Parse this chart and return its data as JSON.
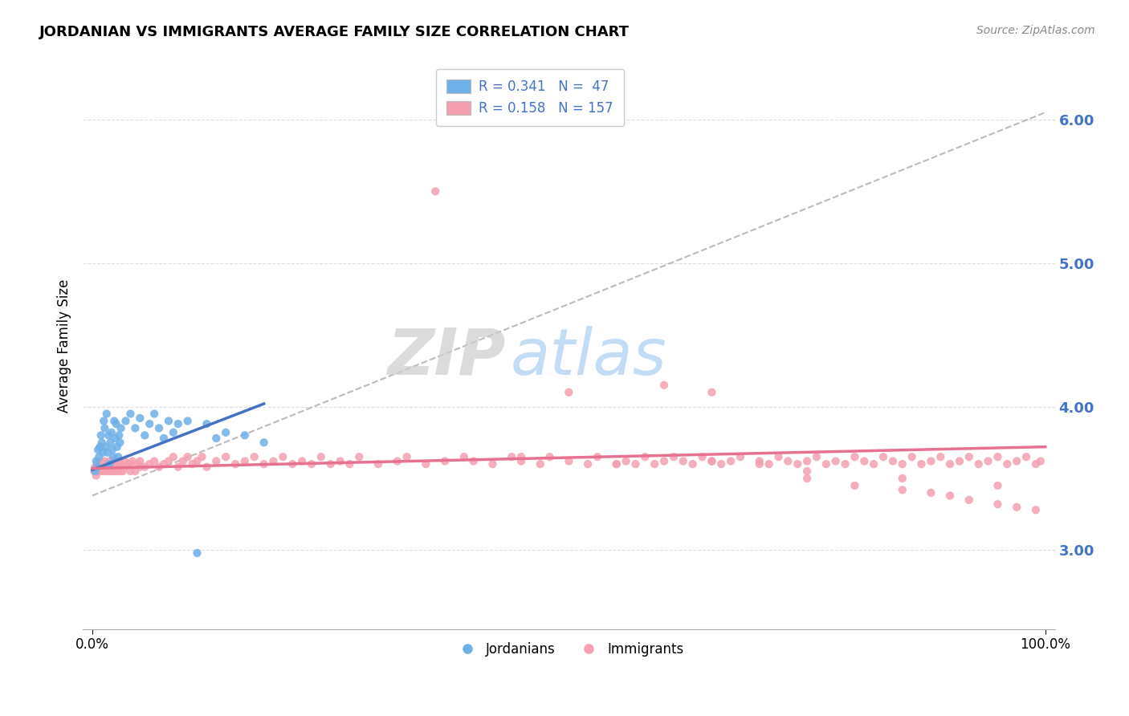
{
  "title": "JORDANIAN VS IMMIGRANTS AVERAGE FAMILY SIZE CORRELATION CHART",
  "source_text": "Source: ZipAtlas.com",
  "ylabel": "Average Family Size",
  "xlim": [
    -1,
    101
  ],
  "ylim": [
    2.45,
    6.4
  ],
  "yticks": [
    3.0,
    4.0,
    5.0,
    6.0
  ],
  "xtick_labels": [
    "0.0%",
    "100.0%"
  ],
  "ytick_color": "#4472C4",
  "legend_r1": "R = 0.341",
  "legend_n1": "N =  47",
  "legend_r2": "R = 0.158",
  "legend_n2": "N = 157",
  "color_jordanian": "#6EB0E8",
  "color_immigrant": "#F4A0B0",
  "color_blue_line": "#4472C4",
  "color_pink_line": "#E87090",
  "color_dashed": "#AAAAAA",
  "background_color": "#FFFFFF",
  "grid_color": "#DDDDDD",
  "title_fontsize": 13,
  "watermark_text1": "ZIP",
  "watermark_text2": "atlas",
  "legend_label1": "Jordanians",
  "legend_label2": "Immigrants",
  "jord_x": [
    0.3,
    0.4,
    0.5,
    0.6,
    0.7,
    0.8,
    0.9,
    1.0,
    1.1,
    1.2,
    1.3,
    1.4,
    1.5,
    1.6,
    1.7,
    1.8,
    1.9,
    2.0,
    2.1,
    2.2,
    2.3,
    2.4,
    2.5,
    2.6,
    2.7,
    2.8,
    2.9,
    3.0,
    3.5,
    4.0,
    4.5,
    5.0,
    5.5,
    6.0,
    6.5,
    7.0,
    7.5,
    8.0,
    8.5,
    9.0,
    10.0,
    11.0,
    12.0,
    13.0,
    14.0,
    16.0,
    18.0
  ],
  "jord_y": [
    3.55,
    3.62,
    3.58,
    3.7,
    3.65,
    3.72,
    3.8,
    3.75,
    3.68,
    3.9,
    3.85,
    3.72,
    3.95,
    3.68,
    3.8,
    3.6,
    3.75,
    3.82,
    3.7,
    3.65,
    3.9,
    3.78,
    3.88,
    3.72,
    3.65,
    3.8,
    3.75,
    3.85,
    3.9,
    3.95,
    3.85,
    3.92,
    3.8,
    3.88,
    3.95,
    3.85,
    3.78,
    3.9,
    3.82,
    3.88,
    3.9,
    2.98,
    3.88,
    3.78,
    3.82,
    3.8,
    3.75
  ],
  "imm_x": [
    0.2,
    0.3,
    0.4,
    0.5,
    0.6,
    0.7,
    0.8,
    0.9,
    1.0,
    1.1,
    1.2,
    1.3,
    1.4,
    1.5,
    1.6,
    1.7,
    1.8,
    1.9,
    2.0,
    2.1,
    2.2,
    2.3,
    2.4,
    2.5,
    2.6,
    2.7,
    2.8,
    2.9,
    3.0,
    3.2,
    3.4,
    3.6,
    3.8,
    4.0,
    4.2,
    4.5,
    4.8,
    5.0,
    5.5,
    6.0,
    6.5,
    7.0,
    7.5,
    8.0,
    8.5,
    9.0,
    9.5,
    10.0,
    10.5,
    11.0,
    11.5,
    12.0,
    13.0,
    14.0,
    15.0,
    16.0,
    17.0,
    18.0,
    19.0,
    20.0,
    21.0,
    22.0,
    23.0,
    24.0,
    25.0,
    26.0,
    27.0,
    28.0,
    30.0,
    32.0,
    33.0,
    35.0,
    37.0,
    39.0,
    40.0,
    42.0,
    44.0,
    45.0,
    47.0,
    48.0,
    50.0,
    52.0,
    53.0,
    55.0,
    56.0,
    57.0,
    58.0,
    59.0,
    60.0,
    61.0,
    62.0,
    63.0,
    64.0,
    65.0,
    66.0,
    67.0,
    68.0,
    70.0,
    71.0,
    72.0,
    73.0,
    74.0,
    75.0,
    76.0,
    77.0,
    78.0,
    79.0,
    80.0,
    81.0,
    82.0,
    83.0,
    84.0,
    85.0,
    86.0,
    87.0,
    88.0,
    89.0,
    90.0,
    91.0,
    92.0,
    93.0,
    94.0,
    95.0,
    96.0,
    97.0,
    98.0,
    99.0,
    99.5,
    36.0,
    50.0,
    60.0,
    65.0,
    70.0,
    75.0,
    80.0,
    85.0,
    88.0,
    90.0,
    92.0,
    95.0,
    97.0,
    99.0,
    45.0,
    55.0,
    65.0,
    75.0,
    85.0,
    95.0,
    0.5,
    1.0,
    1.5,
    2.0,
    2.5,
    3.0,
    4.0,
    5.0
  ],
  "imm_y": [
    3.55,
    3.58,
    3.52,
    3.6,
    3.55,
    3.58,
    3.62,
    3.55,
    3.6,
    3.58,
    3.55,
    3.62,
    3.58,
    3.55,
    3.6,
    3.55,
    3.62,
    3.58,
    3.6,
    3.55,
    3.58,
    3.62,
    3.55,
    3.6,
    3.58,
    3.55,
    3.62,
    3.58,
    3.6,
    3.55,
    3.62,
    3.58,
    3.6,
    3.55,
    3.62,
    3.55,
    3.6,
    3.62,
    3.58,
    3.6,
    3.62,
    3.58,
    3.6,
    3.62,
    3.65,
    3.58,
    3.62,
    3.65,
    3.6,
    3.62,
    3.65,
    3.58,
    3.62,
    3.65,
    3.6,
    3.62,
    3.65,
    3.6,
    3.62,
    3.65,
    3.6,
    3.62,
    3.6,
    3.65,
    3.6,
    3.62,
    3.6,
    3.65,
    3.6,
    3.62,
    3.65,
    3.6,
    3.62,
    3.65,
    3.62,
    3.6,
    3.65,
    3.62,
    3.6,
    3.65,
    3.62,
    3.6,
    3.65,
    3.6,
    3.62,
    3.6,
    3.65,
    3.6,
    3.62,
    3.65,
    3.62,
    3.6,
    3.65,
    3.62,
    3.6,
    3.62,
    3.65,
    3.62,
    3.6,
    3.65,
    3.62,
    3.6,
    3.62,
    3.65,
    3.6,
    3.62,
    3.6,
    3.65,
    3.62,
    3.6,
    3.65,
    3.62,
    3.6,
    3.65,
    3.6,
    3.62,
    3.65,
    3.6,
    3.62,
    3.65,
    3.6,
    3.62,
    3.65,
    3.6,
    3.62,
    3.65,
    3.6,
    3.62,
    5.5,
    4.1,
    4.15,
    4.1,
    3.6,
    3.5,
    3.45,
    3.42,
    3.4,
    3.38,
    3.35,
    3.32,
    3.3,
    3.28,
    3.65,
    3.6,
    3.62,
    3.55,
    3.5,
    3.45,
    3.55,
    3.58,
    3.6,
    3.55,
    3.58,
    3.55,
    3.6,
    3.58
  ],
  "jord_line_x0": 0,
  "jord_line_x1": 18,
  "jord_line_y0": 3.56,
  "jord_line_y1": 4.02,
  "imm_line_x0": 0,
  "imm_line_x1": 100,
  "imm_line_y0": 3.57,
  "imm_line_y1": 3.72,
  "dash_line_x0": 0,
  "dash_line_x1": 100,
  "dash_line_y0": 3.38,
  "dash_line_y1": 6.05
}
